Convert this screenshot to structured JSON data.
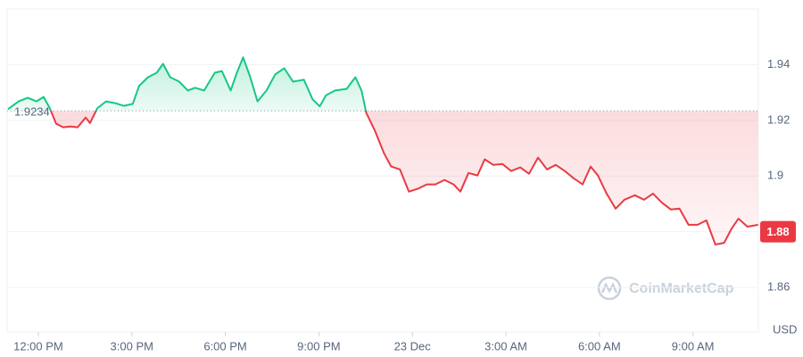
{
  "chart_data": {
    "type": "line",
    "x": [
      11.03,
      11.37,
      11.66,
      11.94,
      12.17,
      12.37,
      12.57,
      12.8,
      13.03,
      13.26,
      13.52,
      13.66,
      13.89,
      14.17,
      14.46,
      14.74,
      15.03,
      15.23,
      15.52,
      15.8,
      16,
      16.23,
      16.52,
      16.8,
      17.03,
      17.32,
      17.66,
      17.89,
      18.17,
      18.37,
      18.57,
      18.8,
      19.03,
      19.32,
      19.6,
      19.89,
      20.17,
      20.52,
      20.8,
      21.03,
      21.23,
      21.52,
      21.89,
      22.17,
      22.37,
      22.52,
      22.8,
      23.09,
      23.32,
      23.6,
      23.89,
      24.17,
      24.46,
      24.74,
      25.03,
      25.32,
      25.54,
      25.8,
      26.09,
      26.32,
      26.6,
      26.89,
      27.17,
      27.46,
      27.74,
      28.03,
      28.32,
      28.6,
      28.89,
      29.17,
      29.46,
      29.72,
      29.95,
      30.23,
      30.52,
      30.8,
      31.14,
      31.43,
      31.72,
      32,
      32.29,
      32.57,
      32.86,
      33.15,
      33.43,
      33.72,
      34,
      34.23,
      34.46,
      34.75,
      35.09
    ],
    "series": [
      {
        "values": [
          1.924,
          1.9268,
          1.9281,
          1.9268,
          1.9284,
          1.9243,
          1.9188,
          1.9175,
          1.9178,
          1.9175,
          1.921,
          1.919,
          1.9243,
          1.9268,
          1.9262,
          1.9252,
          1.9259,
          1.9323,
          1.9355,
          1.9371,
          1.9403,
          1.9355,
          1.9339,
          1.9307,
          1.9317,
          1.9307,
          1.9371,
          1.9377,
          1.9307,
          1.9371,
          1.9426,
          1.9355,
          1.9268,
          1.9307,
          1.9365,
          1.9387,
          1.9339,
          1.9346,
          1.9275,
          1.925,
          1.929,
          1.9307,
          1.9313,
          1.9355,
          1.9307,
          1.9227,
          1.9162,
          1.9082,
          1.9034,
          1.9024,
          1.8944,
          1.8954,
          1.897,
          1.897,
          1.8986,
          1.897,
          1.8944,
          1.9011,
          1.9002,
          1.906,
          1.904,
          1.9043,
          1.9018,
          1.9031,
          1.9008,
          1.9066,
          1.9024,
          1.904,
          1.9018,
          1.8992,
          1.897,
          1.9034,
          1.9002,
          1.8937,
          1.8883,
          1.8915,
          1.8931,
          1.8915,
          1.8937,
          1.8905,
          1.888,
          1.8883,
          1.8825,
          1.8825,
          1.8841,
          1.8754,
          1.876,
          1.8809,
          1.8847,
          1.8818,
          1.8825
        ],
        "color_above": "#16c784",
        "color_below": "#ea3943"
      }
    ],
    "baseline": 1.9234,
    "current_value": 1.88,
    "y_unit": "USD",
    "watermark": "CoinMarketCap",
    "xlim": [
      11,
      35.1
    ],
    "ylim": [
      1.844,
      1.96
    ],
    "yticks": [
      1.86,
      1.88,
      1.9,
      1.92,
      1.94
    ],
    "xticks": [
      {
        "value": 12,
        "label": "12:00 PM"
      },
      {
        "value": 15,
        "label": "3:00 PM"
      },
      {
        "value": 18,
        "label": "6:00 PM"
      },
      {
        "value": 21,
        "label": "9:00 PM"
      },
      {
        "value": 24,
        "label": "23 Dec"
      },
      {
        "value": 27,
        "label": "3:00 AM"
      },
      {
        "value": 30,
        "label": "6:00 AM"
      },
      {
        "value": 33,
        "label": "9:00 AM"
      }
    ],
    "grid": true
  }
}
